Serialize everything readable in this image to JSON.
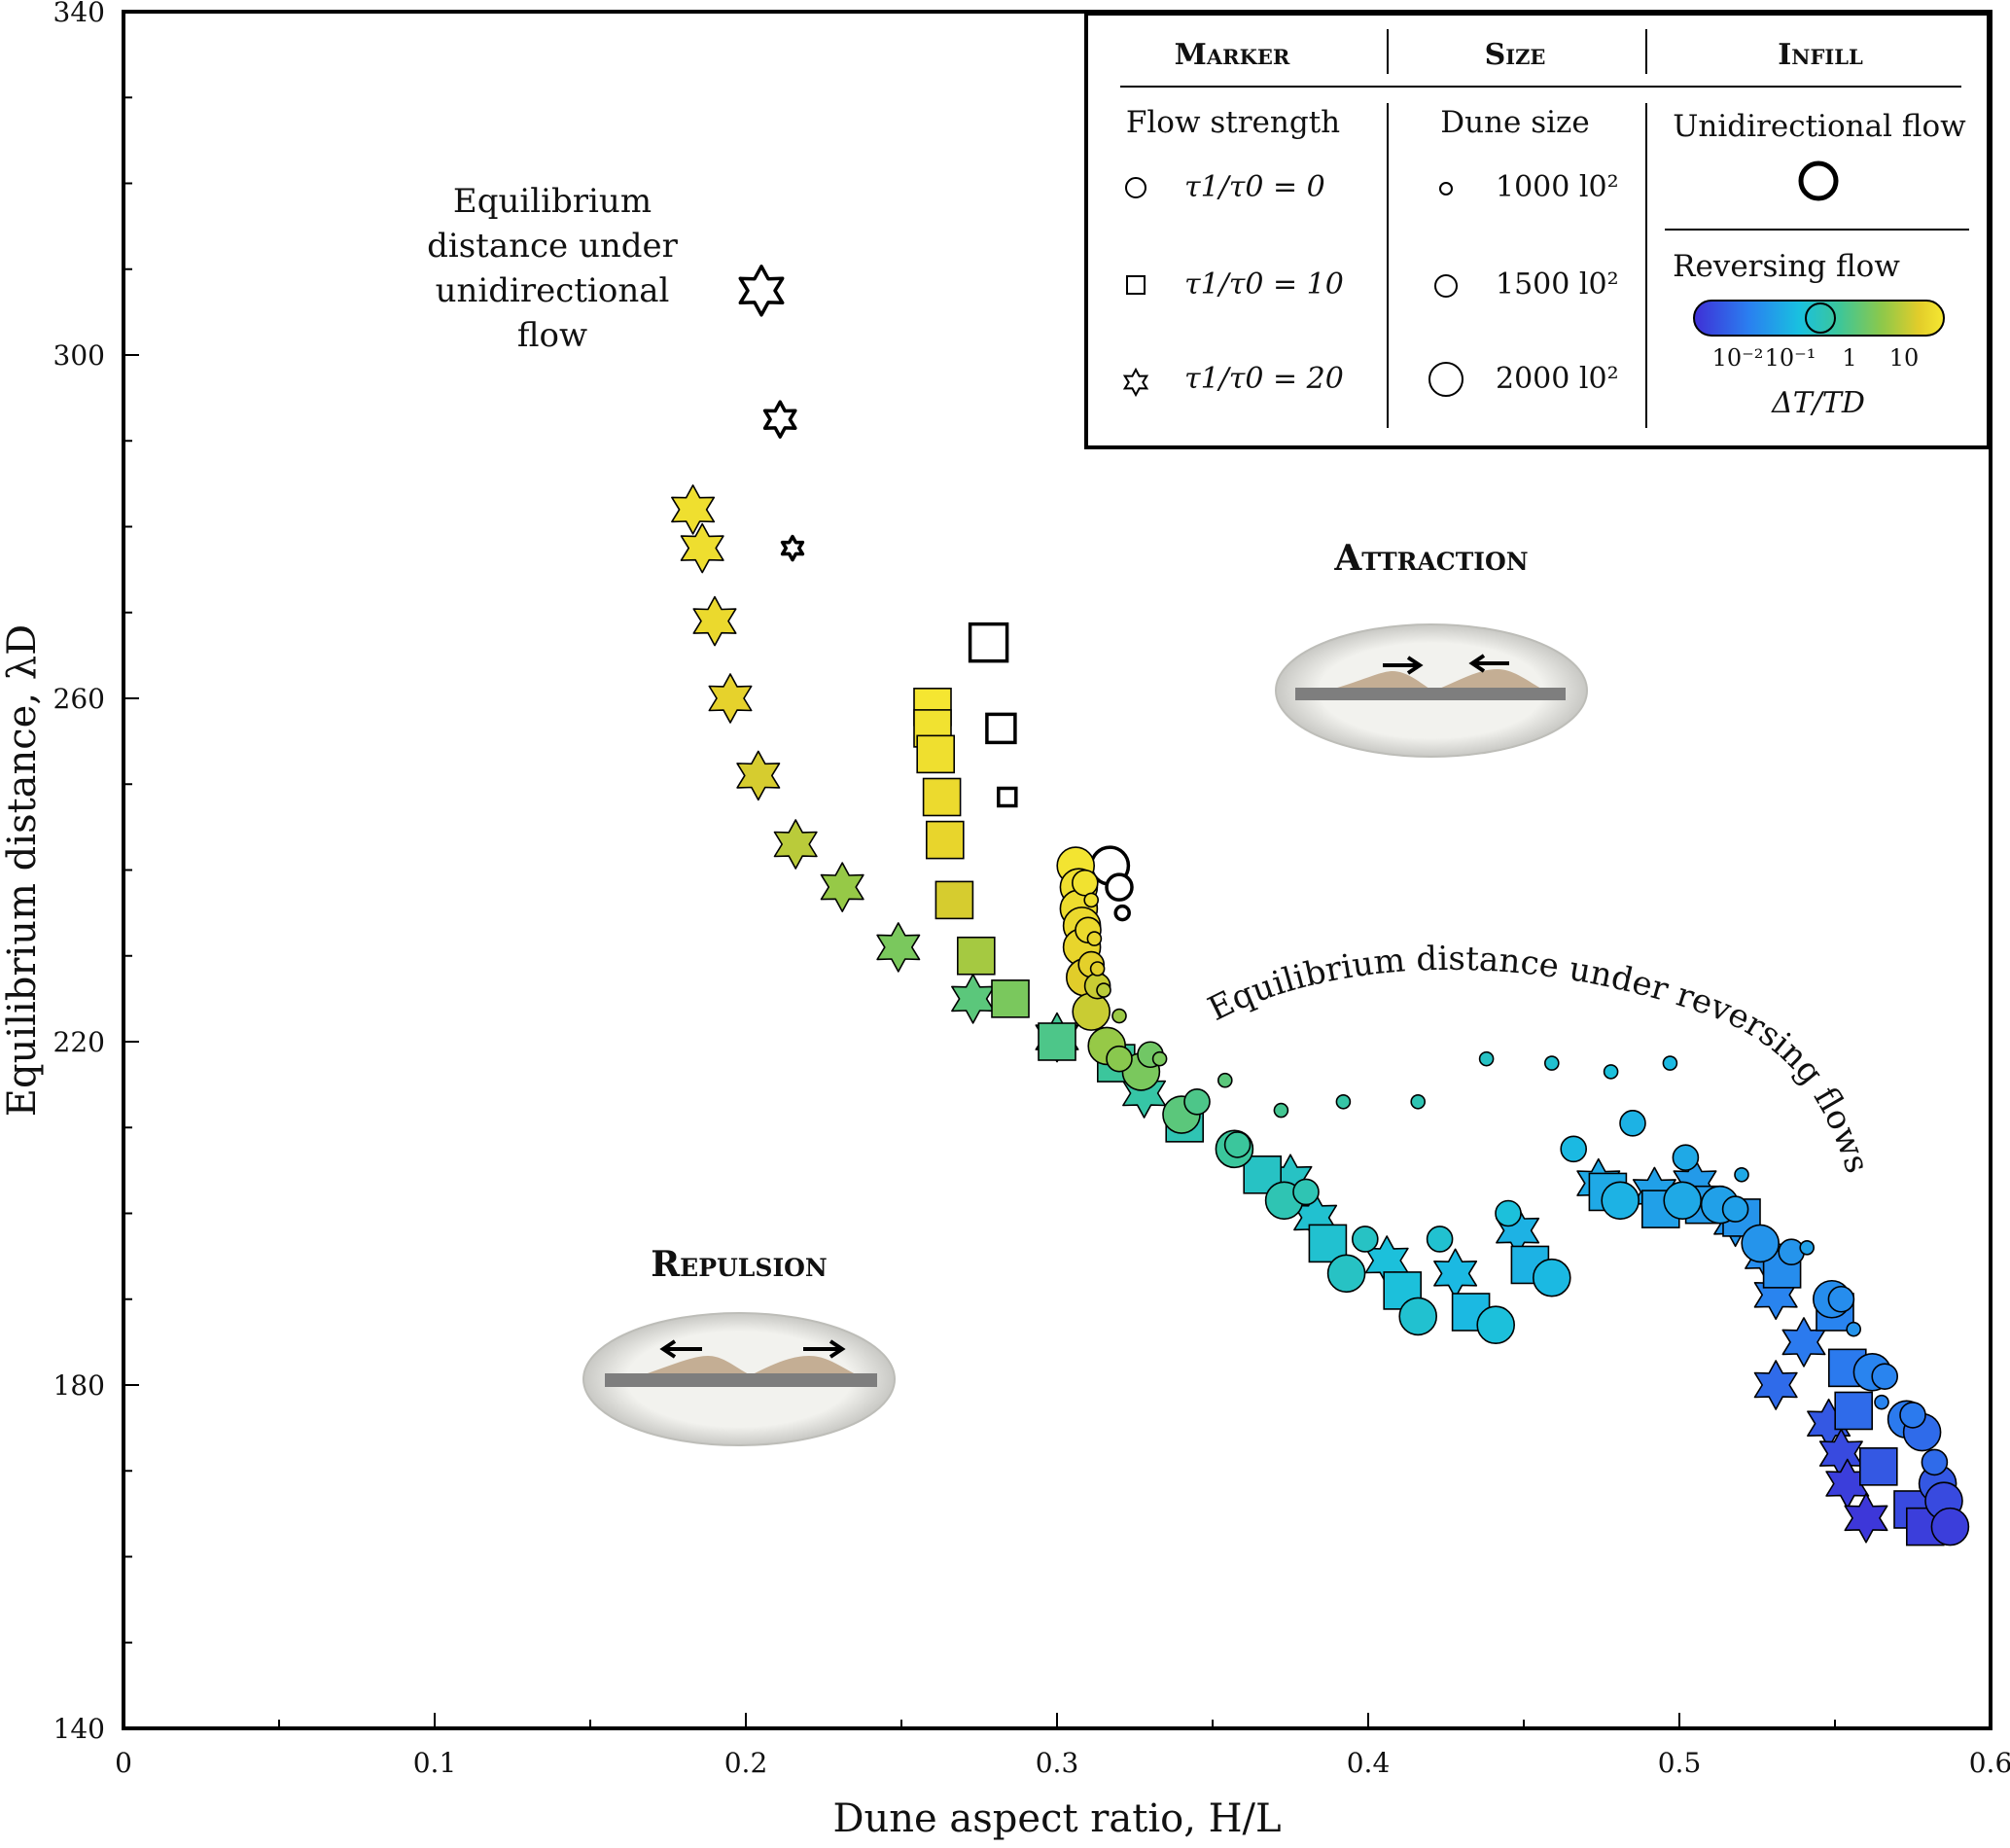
{
  "chart_data": {
    "type": "scatter",
    "xlabel": "Dune aspect ratio, H/L",
    "ylabel": "Equilibrium distance,  λD",
    "xlim": [
      0,
      0.6
    ],
    "ylim": [
      140,
      340
    ],
    "x_ticks": [
      "0",
      "0.1",
      "0.2",
      "0.3",
      "0.4",
      "0.5",
      "0.6"
    ],
    "y_ticks": [
      "140",
      "180",
      "220",
      "260",
      "300",
      "340"
    ],
    "grid": false,
    "legend_position": "top-right",
    "legend": {
      "marker_header": "Marker",
      "size_header": "Size",
      "infill_header": "Infill",
      "flow_strength_title": "Flow strength",
      "dune_size_title": "Dune size",
      "unidirectional_title": "Unidirectional flow",
      "reversing_title": "Reversing flow",
      "markers": [
        {
          "shape": "circle",
          "label": "τ1/τ0 = 0"
        },
        {
          "shape": "square",
          "label": "τ1/τ0 = 10"
        },
        {
          "shape": "star",
          "label": "τ1/τ0 = 20"
        }
      ],
      "sizes": [
        {
          "size": "small",
          "label": "1000 l0²"
        },
        {
          "size": "medium",
          "label": "1500 l0²"
        },
        {
          "size": "large",
          "label": "2000 l0²"
        }
      ],
      "colorbar_ticks": [
        "10⁻²",
        "10⁻¹",
        "1",
        "10"
      ],
      "colorbar_label": "ΔT/TD",
      "colorbar_colors": [
        "#3f2fd6",
        "#2a7ff0",
        "#19c0e0",
        "#3cc69a",
        "#8cc84b",
        "#e2cd2a",
        "#f6e832"
      ]
    },
    "annotations": {
      "unidirectional": [
        "Equilibrium",
        "distance under",
        "unidirectional",
        "flow"
      ],
      "reversing": "Equilibrium distance under reversing flows",
      "attraction": "Attraction",
      "repulsion": "Repulsion"
    },
    "series": [
      {
        "marker": "star",
        "infill": "unidirectional",
        "points": [
          [
            0.205,
            307.5,
            3
          ],
          [
            0.211,
            292.5,
            2
          ],
          [
            0.215,
            277.5,
            1
          ]
        ]
      },
      {
        "marker": "square",
        "infill": "unidirectional",
        "points": [
          [
            0.278,
            266.5,
            3
          ],
          [
            0.282,
            256.5,
            2
          ],
          [
            0.284,
            248.5,
            1
          ]
        ]
      },
      {
        "marker": "circle",
        "infill": "unidirectional",
        "points": [
          [
            0.317,
            240.5,
            3
          ],
          [
            0.32,
            238.0,
            2
          ],
          [
            0.321,
            235.0,
            1
          ]
        ]
      },
      {
        "marker": "star",
        "infill": "reversing",
        "points": [
          [
            0.183,
            282.0,
            3,
            8
          ],
          [
            0.186,
            277.5,
            3,
            7.5
          ],
          [
            0.19,
            269.0,
            3,
            6
          ],
          [
            0.195,
            260.0,
            3,
            4.5
          ],
          [
            0.204,
            251.0,
            3,
            3
          ],
          [
            0.216,
            243.0,
            3,
            2
          ],
          [
            0.231,
            238.0,
            3,
            1.2
          ],
          [
            0.249,
            231.0,
            3,
            0.8
          ],
          [
            0.273,
            225.0,
            3,
            0.5
          ],
          [
            0.3,
            220.5,
            3,
            0.35
          ],
          [
            0.328,
            214.0,
            3,
            0.25
          ],
          [
            0.375,
            204.0,
            3,
            0.15
          ],
          [
            0.383,
            199.5,
            3,
            0.12
          ],
          [
            0.406,
            194.5,
            3,
            0.1
          ],
          [
            0.428,
            193.0,
            3,
            0.08
          ],
          [
            0.448,
            198.0,
            3,
            0.07
          ],
          [
            0.474,
            203.5,
            3,
            0.06
          ],
          [
            0.492,
            202.5,
            3,
            0.05
          ],
          [
            0.505,
            203.5,
            3,
            0.045
          ],
          [
            0.518,
            199.0,
            3,
            0.04
          ],
          [
            0.528,
            195.0,
            3,
            0.035
          ],
          [
            0.531,
            190.5,
            3,
            0.03
          ],
          [
            0.54,
            185.0,
            3,
            0.025
          ],
          [
            0.531,
            180.0,
            3,
            0.02
          ],
          [
            0.548,
            175.5,
            3,
            0.015
          ],
          [
            0.552,
            172.0,
            3,
            0.012
          ],
          [
            0.554,
            168.5,
            3,
            0.01
          ],
          [
            0.56,
            164.5,
            3,
            0.009
          ]
        ]
      },
      {
        "marker": "square",
        "infill": "reversing",
        "points": [
          [
            0.26,
            259.0,
            3,
            11
          ],
          [
            0.26,
            256.5,
            3,
            9
          ],
          [
            0.261,
            253.5,
            3,
            8
          ],
          [
            0.263,
            248.5,
            3,
            6.5
          ],
          [
            0.264,
            243.5,
            3,
            5
          ],
          [
            0.267,
            236.5,
            3,
            3
          ],
          [
            0.274,
            230.0,
            3,
            1.5
          ],
          [
            0.285,
            225.0,
            3,
            0.8
          ],
          [
            0.3,
            220.0,
            3,
            0.4
          ],
          [
            0.319,
            217.5,
            3,
            0.3
          ],
          [
            0.341,
            210.5,
            3,
            0.2
          ],
          [
            0.366,
            204.5,
            3,
            0.15
          ],
          [
            0.387,
            196.5,
            3,
            0.12
          ],
          [
            0.411,
            191.0,
            3,
            0.1
          ],
          [
            0.433,
            188.5,
            3,
            0.08
          ],
          [
            0.452,
            194.0,
            3,
            0.07
          ],
          [
            0.477,
            202.5,
            3,
            0.06
          ],
          [
            0.494,
            200.5,
            3,
            0.05
          ],
          [
            0.508,
            201.0,
            3,
            0.045
          ],
          [
            0.52,
            199.5,
            3,
            0.04
          ],
          [
            0.533,
            193.5,
            3,
            0.035
          ],
          [
            0.55,
            188.5,
            3,
            0.03
          ],
          [
            0.554,
            182.0,
            3,
            0.025
          ],
          [
            0.556,
            177.0,
            3,
            0.02
          ],
          [
            0.564,
            170.5,
            3,
            0.015
          ],
          [
            0.575,
            165.5,
            3,
            0.012
          ],
          [
            0.579,
            163.5,
            3,
            0.01
          ]
        ]
      },
      {
        "marker": "circle",
        "infill": "reversing",
        "points": [
          [
            0.306,
            240.5,
            3,
            10
          ],
          [
            0.307,
            238.0,
            3,
            8
          ],
          [
            0.307,
            235.5,
            3,
            7
          ],
          [
            0.308,
            233.5,
            3,
            6
          ],
          [
            0.308,
            231.0,
            3,
            5
          ],
          [
            0.309,
            227.5,
            3,
            3.5
          ],
          [
            0.311,
            223.5,
            3,
            2.5
          ],
          [
            0.316,
            219.5,
            3,
            1.2
          ],
          [
            0.327,
            216.5,
            3,
            0.8
          ],
          [
            0.34,
            211.5,
            3,
            0.5
          ],
          [
            0.357,
            207.5,
            3,
            0.3
          ],
          [
            0.373,
            201.5,
            3,
            0.2
          ],
          [
            0.393,
            193.0,
            3,
            0.15
          ],
          [
            0.416,
            188.0,
            3,
            0.12
          ],
          [
            0.441,
            187.0,
            3,
            0.1
          ],
          [
            0.459,
            192.5,
            3,
            0.08
          ],
          [
            0.481,
            201.5,
            3,
            0.07
          ],
          [
            0.501,
            201.5,
            3,
            0.06
          ],
          [
            0.513,
            201.0,
            3,
            0.05
          ],
          [
            0.526,
            196.5,
            3,
            0.04
          ],
          [
            0.549,
            190.0,
            3,
            0.035
          ],
          [
            0.562,
            181.5,
            3,
            0.03
          ],
          [
            0.573,
            176.0,
            3,
            0.025
          ],
          [
            0.578,
            174.5,
            3,
            0.02
          ],
          [
            0.583,
            168.5,
            3,
            0.015
          ],
          [
            0.585,
            166.5,
            3,
            0.012
          ],
          [
            0.587,
            163.5,
            3,
            0.01
          ],
          [
            0.309,
            238.5,
            2,
            9
          ],
          [
            0.31,
            233.0,
            2,
            6
          ],
          [
            0.311,
            229.0,
            2,
            4
          ],
          [
            0.313,
            226.5,
            2,
            2.5
          ],
          [
            0.32,
            218.0,
            2,
            1
          ],
          [
            0.33,
            218.5,
            2,
            0.7
          ],
          [
            0.345,
            213.0,
            2,
            0.4
          ],
          [
            0.358,
            208.0,
            2,
            0.3
          ],
          [
            0.38,
            202.5,
            2,
            0.2
          ],
          [
            0.399,
            197.0,
            2,
            0.15
          ],
          [
            0.423,
            197.0,
            2,
            0.12
          ],
          [
            0.445,
            200.0,
            2,
            0.1
          ],
          [
            0.466,
            207.5,
            2,
            0.08
          ],
          [
            0.485,
            210.5,
            2,
            0.07
          ],
          [
            0.502,
            206.5,
            2,
            0.06
          ],
          [
            0.518,
            200.5,
            2,
            0.05
          ],
          [
            0.536,
            195.5,
            2,
            0.04
          ],
          [
            0.552,
            190.0,
            2,
            0.035
          ],
          [
            0.566,
            181.0,
            2,
            0.03
          ],
          [
            0.575,
            176.5,
            2,
            0.025
          ],
          [
            0.582,
            171.0,
            2,
            0.02
          ],
          [
            0.311,
            236.5,
            1,
            8
          ],
          [
            0.312,
            232.0,
            1,
            5
          ],
          [
            0.313,
            228.5,
            1,
            3.5
          ],
          [
            0.315,
            226.0,
            1,
            2
          ],
          [
            0.32,
            223.0,
            1,
            1.3
          ],
          [
            0.333,
            218.0,
            1,
            0.8
          ],
          [
            0.354,
            215.5,
            1,
            0.5
          ],
          [
            0.372,
            212.0,
            1,
            0.35
          ],
          [
            0.392,
            213.0,
            1,
            0.25
          ],
          [
            0.416,
            213.0,
            1,
            0.2
          ],
          [
            0.438,
            218.0,
            1,
            0.15
          ],
          [
            0.459,
            217.5,
            1,
            0.12
          ],
          [
            0.478,
            216.5,
            1,
            0.1
          ],
          [
            0.497,
            217.5,
            1,
            0.08
          ],
          [
            0.52,
            204.5,
            1,
            0.06
          ],
          [
            0.541,
            196.0,
            1,
            0.05
          ],
          [
            0.556,
            186.5,
            1,
            0.04
          ],
          [
            0.565,
            178.0,
            1,
            0.03
          ]
        ]
      }
    ]
  }
}
